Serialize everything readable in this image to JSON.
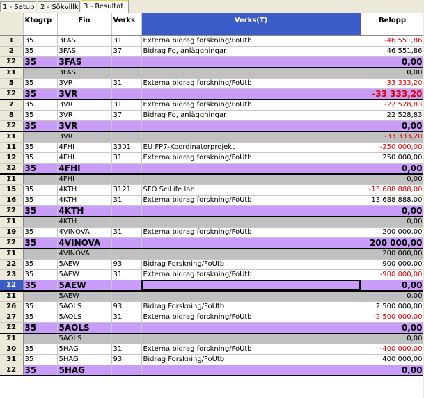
{
  "tabs": [
    {
      "label": "1 - Setup",
      "active": false
    },
    {
      "label": "2 - Sökvillk",
      "active": false
    },
    {
      "label": "3 - Resultat",
      "active": true
    }
  ],
  "columns": {
    "ktogrp": "Ktogrp",
    "fin": "Fin",
    "verks": "Verks",
    "verks_t": "Verks(T)",
    "belopp": "Belopp"
  },
  "colors": {
    "subtotal_row": "#c89cf8",
    "group_row": "#c0c0c0",
    "negative": "#e00000",
    "header_highlight": "#3b5bc8"
  },
  "rows": [
    {
      "type": "data",
      "n": "1",
      "k": "35",
      "f": "3FAS",
      "v": "31",
      "t": "Externa bidrag forskning/FoUtb",
      "b": "-46 551,86",
      "neg": true
    },
    {
      "type": "data",
      "n": "2",
      "k": "35",
      "f": "3FAS",
      "v": "37",
      "t": "Bidrag Fo, anläggningar",
      "b": "46 551,86",
      "neg": false
    },
    {
      "type": "s2",
      "n": "Σ2",
      "k": "35",
      "f": "3FAS",
      "v": "",
      "t": "",
      "b": "0,00",
      "neg": false
    },
    {
      "type": "s1",
      "n": "Σ1",
      "k": "",
      "f": "3FAS",
      "v": "",
      "t": "",
      "b": "0,00",
      "neg": false
    },
    {
      "type": "data",
      "n": "5",
      "k": "35",
      "f": "3VR",
      "v": "31",
      "t": "Externa bidrag forskning/FoUtb",
      "b": "-33 333,20",
      "neg": true
    },
    {
      "type": "s2",
      "n": "Σ2",
      "k": "35",
      "f": "3VR",
      "v": "",
      "t": "",
      "b": "-33 333,20",
      "neg": true
    },
    {
      "type": "data",
      "n": "7",
      "k": "35",
      "f": "3VR",
      "v": "31",
      "t": "Externa bidrag forskning/FoUtb",
      "b": "-22 528,83",
      "neg": true
    },
    {
      "type": "data",
      "n": "8",
      "k": "35",
      "f": "3VR",
      "v": "37",
      "t": "Bidrag Fo, anläggningar",
      "b": "22 528,83",
      "neg": false
    },
    {
      "type": "s2",
      "n": "Σ2",
      "k": "35",
      "f": "3VR",
      "v": "",
      "t": "",
      "b": "0,00",
      "neg": false
    },
    {
      "type": "s1",
      "n": "Σ1",
      "k": "",
      "f": "3VR",
      "v": "",
      "t": "",
      "b": "-33 333,20",
      "neg": true
    },
    {
      "type": "data",
      "n": "11",
      "k": "35",
      "f": "4FHI",
      "v": "3301",
      "t": "EU FP7-Koordinatorprojekt",
      "b": "-250 000,00",
      "neg": true
    },
    {
      "type": "data",
      "n": "12",
      "k": "35",
      "f": "4FHI",
      "v": "31",
      "t": "Externa bidrag forskning/FoUtb",
      "b": "250 000,00",
      "neg": false
    },
    {
      "type": "s2",
      "n": "Σ2",
      "k": "35",
      "f": "4FHI",
      "v": "",
      "t": "",
      "b": "0,00",
      "neg": false
    },
    {
      "type": "s1",
      "n": "Σ1",
      "k": "",
      "f": "4FHI",
      "v": "",
      "t": "",
      "b": "0,00",
      "neg": false
    },
    {
      "type": "data",
      "n": "15",
      "k": "35",
      "f": "4KTH",
      "v": "3121",
      "t": "SFO SciLife lab",
      "b": "-13 688 888,00",
      "neg": true
    },
    {
      "type": "data",
      "n": "16",
      "k": "35",
      "f": "4KTH",
      "v": "31",
      "t": "Externa bidrag forskning/FoUtb",
      "b": "13 688 888,00",
      "neg": false
    },
    {
      "type": "s2",
      "n": "Σ2",
      "k": "35",
      "f": "4KTH",
      "v": "",
      "t": "",
      "b": "0,00",
      "neg": false
    },
    {
      "type": "s1",
      "n": "Σ1",
      "k": "",
      "f": "4KTH",
      "v": "",
      "t": "",
      "b": "0,00",
      "neg": false
    },
    {
      "type": "data",
      "n": "19",
      "k": "35",
      "f": "4VINOVA",
      "v": "31",
      "t": "Externa bidrag forskning/FoUtb",
      "b": "200 000,00",
      "neg": false
    },
    {
      "type": "s2",
      "n": "Σ2",
      "k": "35",
      "f": "4VINOVA",
      "v": "",
      "t": "",
      "b": "200 000,00",
      "neg": false
    },
    {
      "type": "s1",
      "n": "Σ1",
      "k": "",
      "f": "4VINOVA",
      "v": "",
      "t": "",
      "b": "200 000,00",
      "neg": false
    },
    {
      "type": "data",
      "n": "22",
      "k": "35",
      "f": "5AEW",
      "v": "93",
      "t": "Bidrag Forskning/FoUtb",
      "b": "900 000,00",
      "neg": false
    },
    {
      "type": "data",
      "n": "23",
      "k": "35",
      "f": "5AEW",
      "v": "31",
      "t": "Externa bidrag forskning/FoUtb",
      "b": "-900 000,00",
      "neg": true
    },
    {
      "type": "s2",
      "n": "Σ2",
      "k": "35",
      "f": "5AEW",
      "v": "",
      "t": "",
      "b": "0,00",
      "neg": false,
      "active": true
    },
    {
      "type": "s1",
      "n": "Σ1",
      "k": "",
      "f": "5AEW",
      "v": "",
      "t": "",
      "b": "0,00",
      "neg": false
    },
    {
      "type": "data",
      "n": "26",
      "k": "35",
      "f": "5AOLS",
      "v": "93",
      "t": "Bidrag Forskning/FoUtb",
      "b": "2 500 000,00",
      "neg": false
    },
    {
      "type": "data",
      "n": "27",
      "k": "35",
      "f": "5AOLS",
      "v": "31",
      "t": "Externa bidrag forskning/FoUtb",
      "b": "-2 500 000,00",
      "neg": true
    },
    {
      "type": "s2",
      "n": "Σ2",
      "k": "35",
      "f": "5AOLS",
      "v": "",
      "t": "",
      "b": "0,00",
      "neg": false
    },
    {
      "type": "s1",
      "n": "Σ1",
      "k": "",
      "f": "5AOLS",
      "v": "",
      "t": "",
      "b": "0,00",
      "neg": false
    },
    {
      "type": "data",
      "n": "30",
      "k": "35",
      "f": "5HAG",
      "v": "31",
      "t": "Externa bidrag forskning/FoUtb",
      "b": "-400 000,00",
      "neg": true
    },
    {
      "type": "data",
      "n": "31",
      "k": "35",
      "f": "5HAG",
      "v": "93",
      "t": "Bidrag Forskning/FoUtb",
      "b": "400 000,00",
      "neg": false
    },
    {
      "type": "s2",
      "n": "Σ2",
      "k": "35",
      "f": "5HAG",
      "v": "",
      "t": "",
      "b": "0,00",
      "neg": false
    }
  ]
}
